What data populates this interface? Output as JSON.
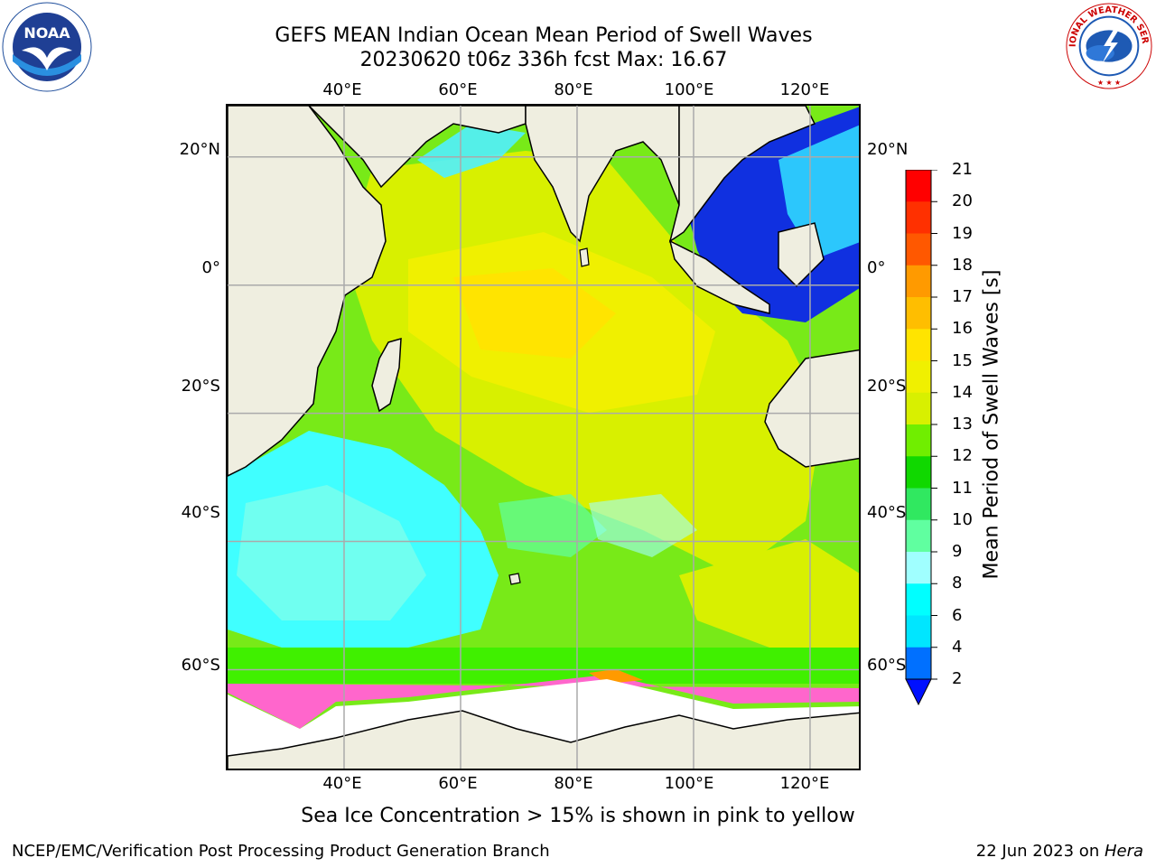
{
  "title": {
    "line1": "GEFS MEAN Indian Ocean Mean Period of Swell Waves",
    "line2": "20230620 t06z 336h fcst   Max: 16.67"
  },
  "logos": {
    "left": {
      "text": "NOAA",
      "icon": "noaa-logo"
    },
    "right": {
      "text": "NATIONAL WEATHER SERVICE",
      "icon": "nws-logo"
    }
  },
  "map": {
    "region": "Indian Ocean",
    "lon_ticks": [
      "40°E",
      "60°E",
      "80°E",
      "100°E",
      "120°E"
    ],
    "lat_ticks": [
      "20°N",
      "0°",
      "20°S",
      "40°S",
      "60°S"
    ],
    "lon_range": [
      20,
      129
    ],
    "lat_range": [
      -76,
      28
    ],
    "lat_tick_values": [
      20,
      0,
      -20,
      -40,
      -60
    ],
    "lon_tick_values": [
      40,
      60,
      80,
      100,
      120
    ]
  },
  "colorbar": {
    "label": "Mean Period of Swell Waves [s]",
    "ticks": [
      "21",
      "20",
      "19",
      "18",
      "17",
      "16",
      "15",
      "14",
      "13",
      "12",
      "11",
      "10",
      "9",
      "8",
      "6",
      "4",
      "2"
    ],
    "colors": [
      "#ff0000",
      "#ff3000",
      "#ff5800",
      "#ff7800",
      "#ff9a00",
      "#ffbe00",
      "#ffe400",
      "#f0f000",
      "#d8f000",
      "#b8f000",
      "#70ee00",
      "#10d800",
      "#30e860",
      "#60ffa0",
      "#a0ffff",
      "#40ffff",
      "#00ffff",
      "#00e6ff",
      "#0070ff"
    ],
    "extend_color": "#0010ff"
  },
  "colors": {
    "land": "#efeee0",
    "sea_ice": "#ff66cc",
    "grid": "#aaaaaa"
  },
  "footer": {
    "note": "Sea Ice Concentration > 15% is shown in pink to yellow",
    "credit": "NCEP/EMC/Verification Post Processing Product Generation Branch",
    "date": "22 Jun 2023 on ",
    "host": "Hera"
  }
}
